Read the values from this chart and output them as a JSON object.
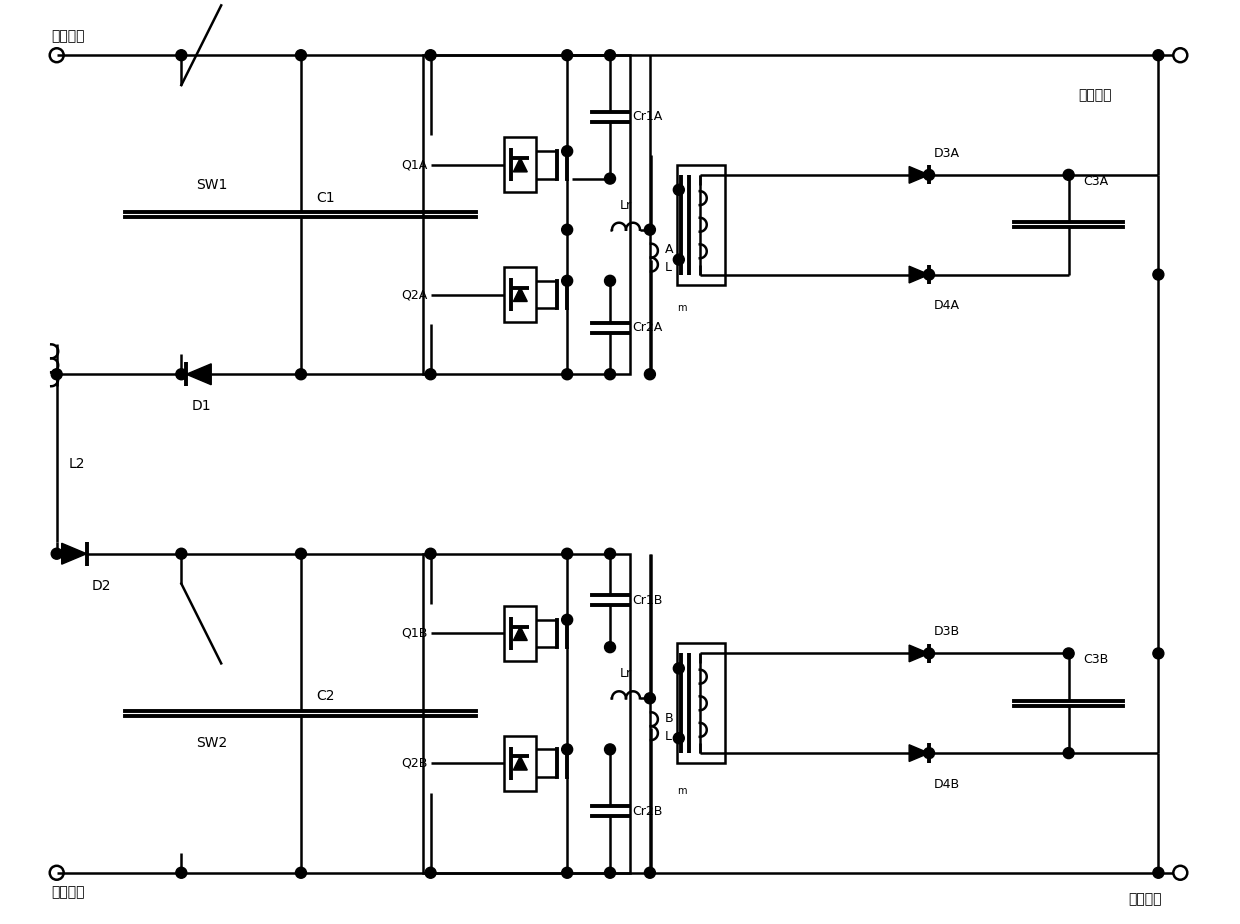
{
  "bg_color": "#ffffff",
  "line_color": "#000000",
  "lw": 1.8,
  "lw_thick": 2.8,
  "labels": {
    "input_pos": "输入正端",
    "input_neg": "输入负端",
    "output_pos": "输出正端",
    "output_neg": "输出负端",
    "SW1": "SW1",
    "SW2": "SW2",
    "C1": "C1",
    "C2": "C2",
    "D1": "D1",
    "D2": "D2",
    "L2": "L2",
    "Q1A": "Q1A",
    "Q2A": "Q2A",
    "Q1B": "Q1B",
    "Q2B": "Q2B",
    "Cr1A": "Cr1A",
    "Cr2A": "Cr2A",
    "Cr1B": "Cr1B",
    "Cr2B": "Cr2B",
    "Lr": "Lr",
    "A": "A",
    "L": "L",
    "m": "m",
    "D3A": "D3A",
    "D4A": "D4A",
    "D3B": "D3B",
    "D4B": "D4B",
    "C3A": "C3A",
    "C3B": "C3B",
    "B": "B"
  }
}
